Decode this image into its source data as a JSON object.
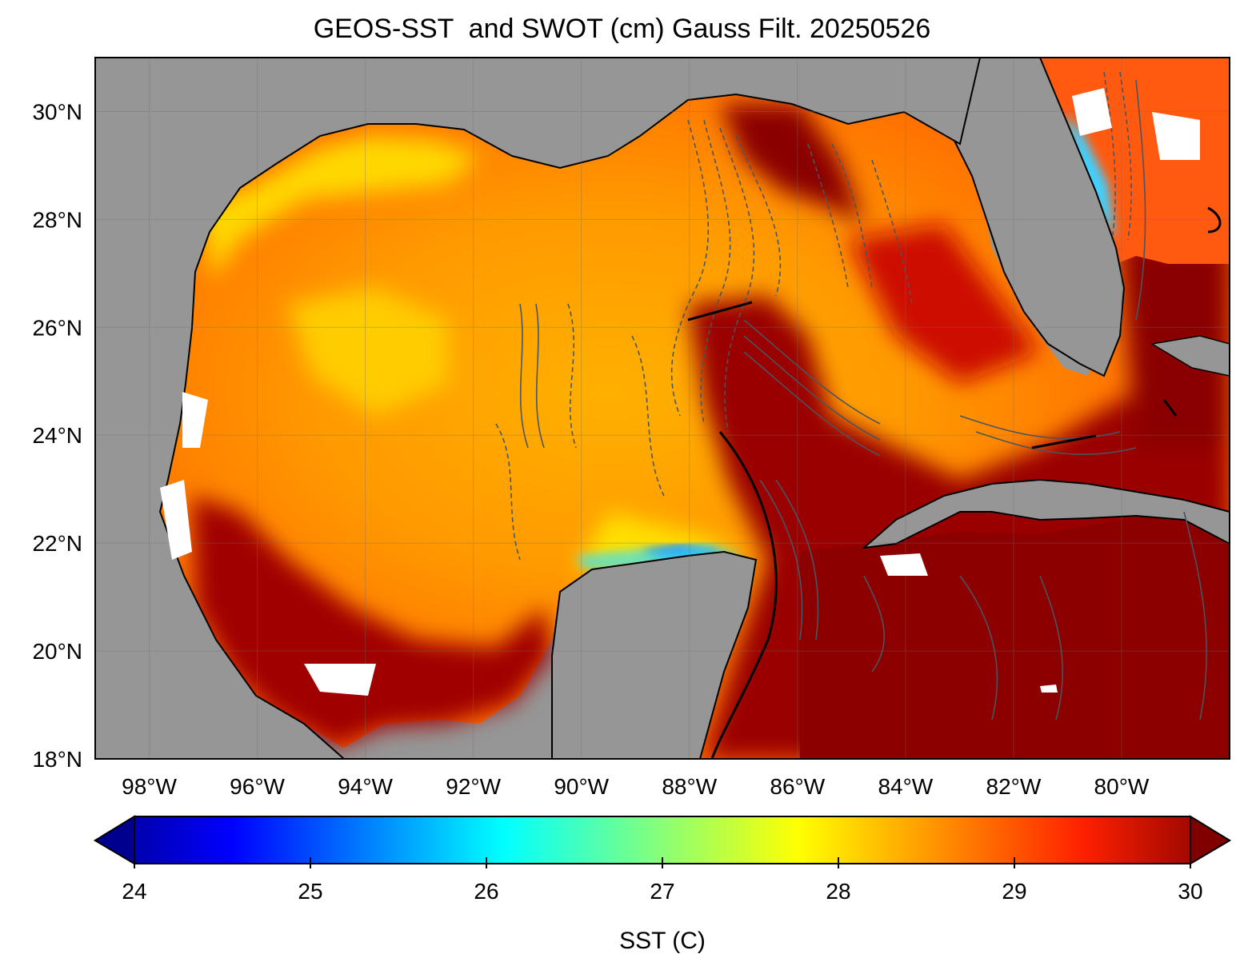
{
  "title": "GEOS-SST  and SWOT (cm) Gauss Filt. 20250526",
  "map": {
    "lon_range": [
      -99,
      -78
    ],
    "lat_range": [
      18,
      31
    ],
    "lat_ticks": [
      {
        "value": 30,
        "label": "30°N"
      },
      {
        "value": 28,
        "label": "28°N"
      },
      {
        "value": 26,
        "label": "26°N"
      },
      {
        "value": 24,
        "label": "24°N"
      },
      {
        "value": 22,
        "label": "22°N"
      },
      {
        "value": 20,
        "label": "20°N"
      },
      {
        "value": 18,
        "label": "18°N"
      }
    ],
    "lon_ticks": [
      {
        "value": -98,
        "label": "98°W"
      },
      {
        "value": -96,
        "label": "96°W"
      },
      {
        "value": -94,
        "label": "94°W"
      },
      {
        "value": -92,
        "label": "92°W"
      },
      {
        "value": -90,
        "label": "90°W"
      },
      {
        "value": -88,
        "label": "88°W"
      },
      {
        "value": -86,
        "label": "86°W"
      },
      {
        "value": -84,
        "label": "84°W"
      },
      {
        "value": -82,
        "label": "82°W"
      },
      {
        "value": -80,
        "label": "80°W"
      }
    ],
    "colors": {
      "land": "#969696",
      "coast": "#000000",
      "contour": "#4a5560",
      "grid": "#707070"
    }
  },
  "colorbar": {
    "label": "SST (C)",
    "min": 24,
    "max": 30,
    "extend": "both",
    "colormap": "jet",
    "ticks": [
      {
        "value": 24,
        "label": "24"
      },
      {
        "value": 25,
        "label": "25"
      },
      {
        "value": 26,
        "label": "26"
      },
      {
        "value": 27,
        "label": "27"
      },
      {
        "value": 28,
        "label": "28"
      },
      {
        "value": 29,
        "label": "29"
      },
      {
        "value": 30,
        "label": "30"
      }
    ]
  }
}
